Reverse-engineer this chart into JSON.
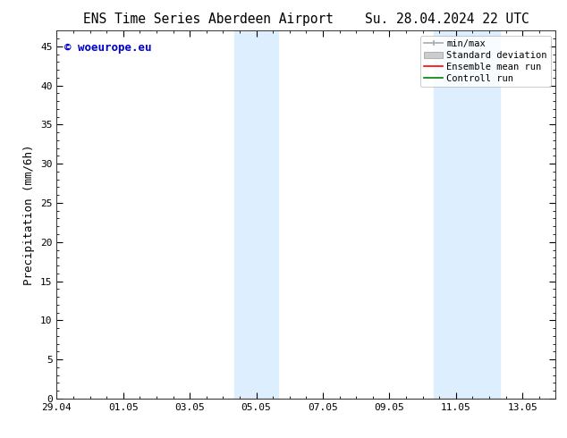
{
  "title_left": "ENS Time Series Aberdeen Airport",
  "title_right": "Su. 28.04.2024 22 UTC",
  "ylabel": "Precipitation (mm/6h)",
  "watermark": "© woeurope.eu",
  "watermark_color": "#0000cc",
  "x_ticks": [
    "29.04",
    "01.05",
    "03.05",
    "05.05",
    "07.05",
    "09.05",
    "11.05",
    "13.05"
  ],
  "x_tick_positions": [
    0,
    2,
    4,
    6,
    8,
    10,
    12,
    14
  ],
  "ylim": [
    0,
    47
  ],
  "y_ticks": [
    0,
    5,
    10,
    15,
    20,
    25,
    30,
    35,
    40,
    45
  ],
  "shaded_regions": [
    {
      "x_start": 5.33,
      "x_end": 6.67,
      "color": "#ddeeff"
    },
    {
      "x_start": 11.33,
      "x_end": 13.33,
      "color": "#ddeeff"
    }
  ],
  "legend_items": [
    {
      "label": "min/max",
      "color": "#aaaaaa"
    },
    {
      "label": "Standard deviation",
      "color": "#cccccc"
    },
    {
      "label": "Ensemble mean run",
      "color": "#ff0000"
    },
    {
      "label": "Controll run",
      "color": "#008000"
    }
  ],
  "bg_color": "#ffffff",
  "plot_bg_color": "#ffffff",
  "tick_fontsize": 8,
  "label_fontsize": 9,
  "title_fontsize": 10.5,
  "legend_fontsize": 7.5,
  "watermark_fontsize": 9
}
